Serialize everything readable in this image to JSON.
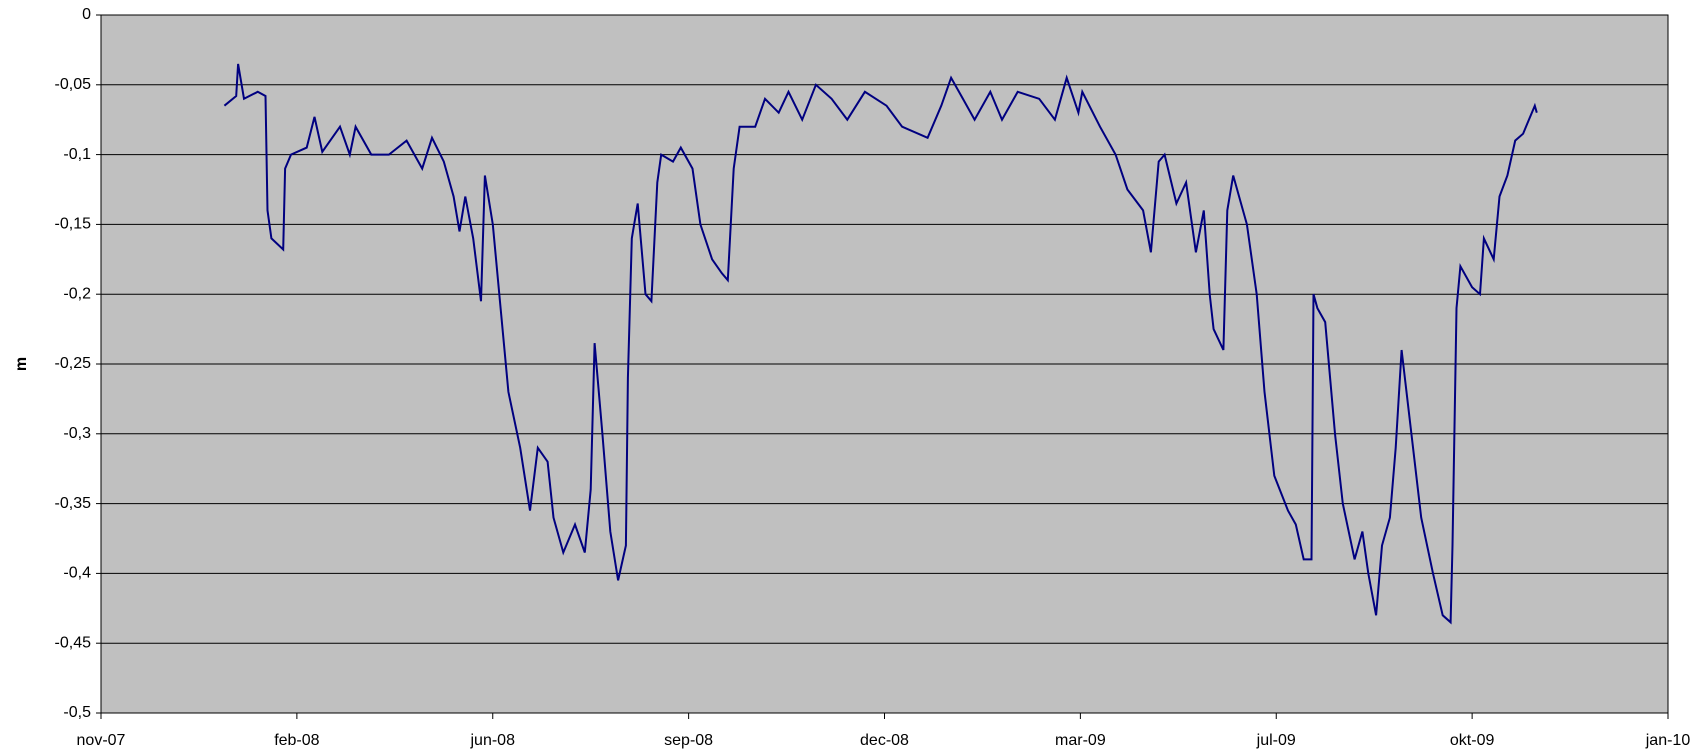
{
  "chart_data": {
    "type": "line",
    "y_label": "m",
    "plot_background": "#c0c0c0",
    "grid": true,
    "xlim": [
      0,
      8
    ],
    "xticks": [
      {
        "value": 0,
        "label": "nov-07"
      },
      {
        "value": 1,
        "label": "feb-08"
      },
      {
        "value": 2,
        "label": "jun-08"
      },
      {
        "value": 3,
        "label": "sep-08"
      },
      {
        "value": 4,
        "label": "dec-08"
      },
      {
        "value": 5,
        "label": "mar-09"
      },
      {
        "value": 6,
        "label": "jul-09"
      },
      {
        "value": 7,
        "label": "okt-09"
      },
      {
        "value": 8,
        "label": "jan-10"
      }
    ],
    "ylim": [
      -0.5,
      0
    ],
    "yticks": [
      0,
      {
        "value": -0.05,
        "label": "-0,05"
      },
      {
        "value": -0.1,
        "label": "-0,1"
      },
      {
        "value": -0.15,
        "label": "-0,15"
      },
      {
        "value": -0.2,
        "label": "-0,2"
      },
      {
        "value": -0.25,
        "label": "-0,25"
      },
      {
        "value": -0.3,
        "label": "-0,3"
      },
      {
        "value": -0.35,
        "label": "-0,35"
      },
      {
        "value": -0.4,
        "label": "-0,4"
      },
      {
        "value": -0.45,
        "label": "-0,45"
      },
      {
        "value": -0.5,
        "label": "-0,5"
      }
    ],
    "series": [
      {
        "color": "#000080",
        "x": [
          0.63,
          0.69,
          0.7,
          0.73,
          0.8,
          0.84,
          0.85,
          0.87,
          0.93,
          0.94,
          0.97,
          1.05,
          1.09,
          1.13,
          1.22,
          1.27,
          1.3,
          1.38,
          1.47,
          1.56,
          1.64,
          1.69,
          1.75,
          1.8,
          1.83,
          1.86,
          1.9,
          1.94,
          1.96,
          2.0,
          2.04,
          2.08,
          2.14,
          2.19,
          2.23,
          2.28,
          2.31,
          2.36,
          2.42,
          2.47,
          2.5,
          2.52,
          2.56,
          2.6,
          2.64,
          2.68,
          2.69,
          2.71,
          2.74,
          2.78,
          2.81,
          2.84,
          2.86,
          2.92,
          2.96,
          3.02,
          3.06,
          3.12,
          3.17,
          3.2,
          3.23,
          3.26,
          3.34,
          3.39,
          3.46,
          3.51,
          3.58,
          3.65,
          3.73,
          3.81,
          3.9,
          4.01,
          4.09,
          4.22,
          4.29,
          4.34,
          4.4,
          4.46,
          4.54,
          4.6,
          4.68,
          4.79,
          4.87,
          4.93,
          4.99,
          5.01,
          5.1,
          5.18,
          5.24,
          5.32,
          5.36,
          5.4,
          5.43,
          5.49,
          5.54,
          5.59,
          5.63,
          5.66,
          5.68,
          5.73,
          5.75,
          5.78,
          5.85,
          5.9,
          5.94,
          5.99,
          6.06,
          6.1,
          6.14,
          6.18,
          6.19,
          6.21,
          6.25,
          6.3,
          6.34,
          6.4,
          6.44,
          6.47,
          6.51,
          6.54,
          6.58,
          6.61,
          6.64,
          6.69,
          6.74,
          6.8,
          6.85,
          6.89,
          6.9,
          6.92,
          6.94,
          7.0,
          7.04,
          7.06,
          7.11,
          7.14,
          7.18,
          7.22,
          7.26,
          7.29,
          7.32,
          7.33
        ],
        "values": [
          -0.065,
          -0.058,
          -0.035,
          -0.06,
          -0.055,
          -0.058,
          -0.14,
          -0.16,
          -0.168,
          -0.11,
          -0.1,
          -0.095,
          -0.073,
          -0.098,
          -0.08,
          -0.1,
          -0.08,
          -0.1,
          -0.1,
          -0.09,
          -0.11,
          -0.088,
          -0.105,
          -0.13,
          -0.155,
          -0.13,
          -0.16,
          -0.205,
          -0.115,
          -0.15,
          -0.21,
          -0.27,
          -0.31,
          -0.355,
          -0.31,
          -0.32,
          -0.36,
          -0.385,
          -0.365,
          -0.385,
          -0.34,
          -0.235,
          -0.3,
          -0.37,
          -0.405,
          -0.38,
          -0.26,
          -0.16,
          -0.135,
          -0.2,
          -0.205,
          -0.12,
          -0.1,
          -0.105,
          -0.095,
          -0.11,
          -0.15,
          -0.175,
          -0.185,
          -0.19,
          -0.11,
          -0.08,
          -0.08,
          -0.06,
          -0.07,
          -0.055,
          -0.075,
          -0.05,
          -0.06,
          -0.075,
          -0.055,
          -0.065,
          -0.08,
          -0.088,
          -0.065,
          -0.045,
          -0.06,
          -0.075,
          -0.055,
          -0.075,
          -0.055,
          -0.06,
          -0.075,
          -0.045,
          -0.07,
          -0.055,
          -0.08,
          -0.1,
          -0.125,
          -0.14,
          -0.17,
          -0.105,
          -0.1,
          -0.135,
          -0.12,
          -0.17,
          -0.14,
          -0.2,
          -0.225,
          -0.24,
          -0.14,
          -0.115,
          -0.15,
          -0.2,
          -0.27,
          -0.33,
          -0.355,
          -0.365,
          -0.39,
          -0.39,
          -0.2,
          -0.21,
          -0.22,
          -0.3,
          -0.35,
          -0.39,
          -0.37,
          -0.4,
          -0.43,
          -0.38,
          -0.36,
          -0.31,
          -0.24,
          -0.3,
          -0.36,
          -0.4,
          -0.43,
          -0.435,
          -0.38,
          -0.21,
          -0.18,
          -0.195,
          -0.2,
          -0.16,
          -0.175,
          -0.13,
          -0.115,
          -0.09,
          -0.085,
          -0.075,
          -0.065,
          -0.07
        ]
      }
    ]
  }
}
